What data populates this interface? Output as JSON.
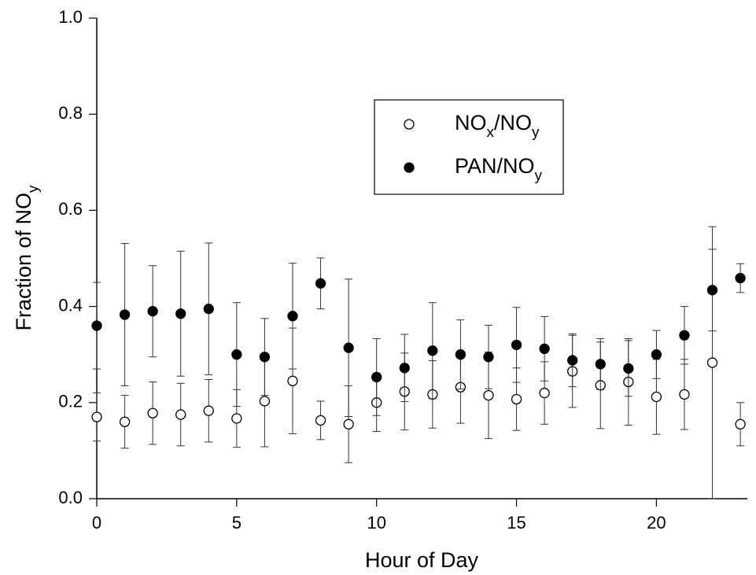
{
  "chart_data": {
    "type": "scatter",
    "xlabel": "Hour of Day",
    "ylabel": "Fraction of NOy",
    "xlim": [
      0,
      23.25
    ],
    "ylim": [
      0,
      1
    ],
    "xticks": [
      0,
      5,
      10,
      15,
      20
    ],
    "yticks": [
      {
        "value": 0,
        "label": "0.0"
      },
      {
        "value": 0.2,
        "label": "0.2"
      },
      {
        "value": 0.4,
        "label": "0.4"
      },
      {
        "value": 0.6,
        "label": "0.6"
      },
      {
        "value": 0.8,
        "label": "0.8"
      },
      {
        "value": 1,
        "label": "1.0"
      }
    ],
    "x": [
      0,
      1,
      2,
      3,
      4,
      5,
      6,
      7,
      8,
      9,
      10,
      11,
      12,
      13,
      14,
      15,
      16,
      17,
      18,
      19,
      20,
      21,
      22,
      23
    ],
    "series": [
      {
        "name": "NOx/NOy",
        "color": "#000000",
        "marker": "open",
        "values": [
          0.17,
          0.16,
          0.178,
          0.175,
          0.183,
          0.167,
          0.203,
          0.245,
          0.163,
          0.155,
          0.2,
          0.223,
          0.217,
          0.232,
          0.215,
          0.207,
          0.22,
          0.265,
          0.236,
          0.243,
          0.212,
          0.217,
          0.283,
          0.155
        ],
        "errors": [
          0.05,
          0.055,
          0.065,
          0.065,
          0.065,
          0.06,
          0.095,
          0.11,
          0.04,
          0.08,
          0.06,
          0.08,
          0.07,
          0.075,
          0.09,
          0.065,
          0.065,
          0.075,
          0.09,
          0.09,
          0.078,
          0.073,
          0.283,
          0.045
        ]
      },
      {
        "name": "PAN/NOy",
        "color": "#000000",
        "marker": "filled",
        "values": [
          0.36,
          0.383,
          0.39,
          0.385,
          0.395,
          0.3,
          0.295,
          0.38,
          0.448,
          0.314,
          0.253,
          0.272,
          0.308,
          0.3,
          0.295,
          0.32,
          0.312,
          0.288,
          0.28,
          0.271,
          0.3,
          0.34,
          0.434,
          0.459
        ],
        "errors": [
          0.09,
          0.148,
          0.095,
          0.13,
          0.137,
          0.108,
          0.08,
          0.11,
          0.053,
          0.143,
          0.08,
          0.07,
          0.1,
          0.072,
          0.066,
          0.078,
          0.067,
          0.055,
          0.053,
          0.058,
          0.05,
          0.06,
          0.085,
          0.03
        ]
      }
    ]
  }
}
